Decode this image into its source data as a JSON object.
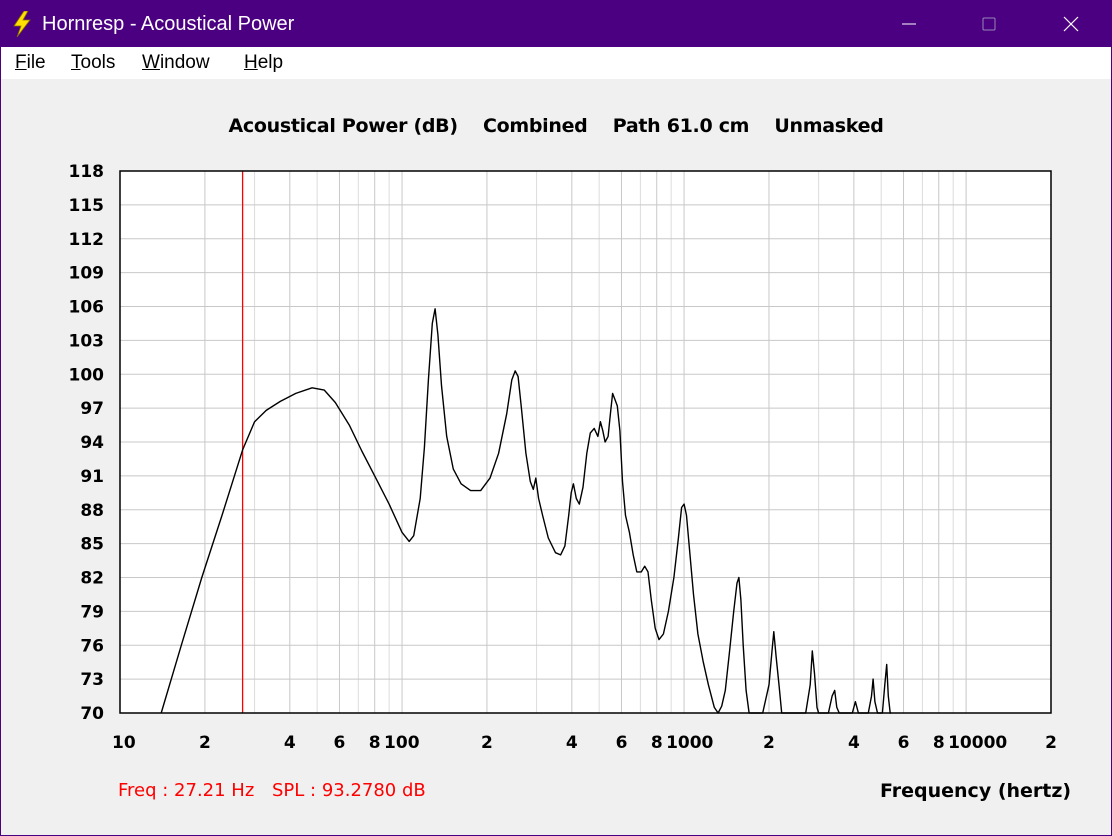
{
  "window": {
    "title": "Hornresp - Acoustical Power",
    "app_icon": "lightning-bolt-icon",
    "title_color": "#4b0082"
  },
  "menu": [
    {
      "label": "File",
      "accel": "F",
      "rest": "ile"
    },
    {
      "label": "Tools",
      "accel": "T",
      "rest": "ools"
    },
    {
      "label": "Window",
      "accel": "W",
      "rest": "indow"
    },
    {
      "label": "Help",
      "accel": "H",
      "rest": "elp"
    }
  ],
  "chart_header": "Acoustical Power (dB)    Combined    Path 61.0 cm    Unmasked",
  "status": {
    "freq": "Freq : 27.21 Hz",
    "spl": "SPL : 93.2780 dB"
  },
  "chart_data": {
    "type": "line",
    "title": "Acoustical Power (dB)    Combined    Path 61.0 cm    Unmasked",
    "xlabel": "Frequency (hertz)",
    "ylabel": "",
    "x_scale": "log",
    "xlim": [
      10,
      20000
    ],
    "ylim": [
      70,
      118
    ],
    "grid": true,
    "y_ticks": [
      "118",
      "115",
      "112",
      "109",
      "106",
      "103",
      "100",
      "97",
      "94",
      "91",
      "88",
      "85",
      "82",
      "79",
      "76",
      "73",
      "70"
    ],
    "x_tick_labels": [
      {
        "x": 10,
        "label": "10"
      },
      {
        "x": 20,
        "label": "2"
      },
      {
        "x": 40,
        "label": "4"
      },
      {
        "x": 60,
        "label": "6"
      },
      {
        "x": 80,
        "label": "8"
      },
      {
        "x": 100,
        "label": "100"
      },
      {
        "x": 200,
        "label": "2"
      },
      {
        "x": 400,
        "label": "4"
      },
      {
        "x": 600,
        "label": "6"
      },
      {
        "x": 800,
        "label": "8"
      },
      {
        "x": 1000,
        "label": "1000"
      },
      {
        "x": 2000,
        "label": "2"
      },
      {
        "x": 4000,
        "label": "4"
      },
      {
        "x": 6000,
        "label": "6"
      },
      {
        "x": 8000,
        "label": "8"
      },
      {
        "x": 10000,
        "label": "10000"
      },
      {
        "x": 20000,
        "label": "2"
      }
    ],
    "cursor": {
      "x": 27.21,
      "color": "#ff0000"
    },
    "series": [
      {
        "color": "#000000",
        "points": [
          [
            14.0,
            70.0
          ],
          [
            16.5,
            76.0
          ],
          [
            19.5,
            82.0
          ],
          [
            23.0,
            87.5
          ],
          [
            27.2,
            93.3
          ],
          [
            30,
            95.8
          ],
          [
            33,
            96.8
          ],
          [
            37,
            97.6
          ],
          [
            42,
            98.3
          ],
          [
            48,
            98.8
          ],
          [
            53,
            98.6
          ],
          [
            58,
            97.5
          ],
          [
            65,
            95.5
          ],
          [
            72,
            93.2
          ],
          [
            80,
            91.0
          ],
          [
            90,
            88.5
          ],
          [
            100,
            86.0
          ],
          [
            106,
            85.2
          ],
          [
            110,
            85.7
          ],
          [
            116,
            89.0
          ],
          [
            120,
            93.5
          ],
          [
            124,
            99.5
          ],
          [
            128,
            104.5
          ],
          [
            131,
            105.8
          ],
          [
            134,
            103.5
          ],
          [
            138,
            99.0
          ],
          [
            144,
            94.5
          ],
          [
            152,
            91.6
          ],
          [
            162,
            90.3
          ],
          [
            175,
            89.7
          ],
          [
            190,
            89.7
          ],
          [
            205,
            90.8
          ],
          [
            220,
            93.0
          ],
          [
            235,
            96.5
          ],
          [
            245,
            99.5
          ],
          [
            252,
            100.3
          ],
          [
            258,
            99.8
          ],
          [
            265,
            97.0
          ],
          [
            275,
            93.0
          ],
          [
            285,
            90.5
          ],
          [
            292,
            89.8
          ],
          [
            298,
            90.8
          ],
          [
            305,
            89.0
          ],
          [
            315,
            87.5
          ],
          [
            330,
            85.5
          ],
          [
            350,
            84.2
          ],
          [
            365,
            84.0
          ],
          [
            378,
            84.8
          ],
          [
            390,
            87.5
          ],
          [
            398,
            89.5
          ],
          [
            405,
            90.3
          ],
          [
            415,
            89.0
          ],
          [
            425,
            88.5
          ],
          [
            438,
            90.0
          ],
          [
            452,
            93.0
          ],
          [
            465,
            94.8
          ],
          [
            480,
            95.2
          ],
          [
            495,
            94.5
          ],
          [
            505,
            95.8
          ],
          [
            515,
            95.0
          ],
          [
            525,
            94.0
          ],
          [
            538,
            94.5
          ],
          [
            548,
            96.5
          ],
          [
            558,
            98.3
          ],
          [
            568,
            97.8
          ],
          [
            580,
            97.2
          ],
          [
            592,
            95.0
          ],
          [
            605,
            90.5
          ],
          [
            620,
            87.5
          ],
          [
            640,
            86.0
          ],
          [
            660,
            84.0
          ],
          [
            680,
            82.5
          ],
          [
            705,
            82.5
          ],
          [
            725,
            83.0
          ],
          [
            745,
            82.5
          ],
          [
            765,
            80.0
          ],
          [
            790,
            77.5
          ],
          [
            815,
            76.5
          ],
          [
            845,
            77.0
          ],
          [
            880,
            79.0
          ],
          [
            920,
            82.0
          ],
          [
            955,
            85.5
          ],
          [
            980,
            88.2
          ],
          [
            1000,
            88.5
          ],
          [
            1020,
            87.5
          ],
          [
            1045,
            84.5
          ],
          [
            1080,
            80.5
          ],
          [
            1120,
            77.0
          ],
          [
            1170,
            74.5
          ],
          [
            1220,
            72.5
          ],
          [
            1280,
            70.5
          ],
          [
            1320,
            70.0
          ],
          [
            1360,
            70.6
          ],
          [
            1400,
            72.0
          ],
          [
            1450,
            75.5
          ],
          [
            1500,
            79.0
          ],
          [
            1540,
            81.5
          ],
          [
            1565,
            82.0
          ],
          [
            1590,
            80.0
          ],
          [
            1620,
            76.0
          ],
          [
            1660,
            72.0
          ],
          [
            1700,
            70.0
          ],
          [
            1750,
            70.0
          ],
          [
            1900,
            70.0
          ],
          [
            2000,
            72.5
          ],
          [
            2050,
            75.5
          ],
          [
            2080,
            77.2
          ],
          [
            2120,
            75.0
          ],
          [
            2170,
            72.5
          ],
          [
            2220,
            70.0
          ],
          [
            2300,
            70.0
          ],
          [
            2700,
            70.0
          ],
          [
            2800,
            72.5
          ],
          [
            2850,
            75.5
          ],
          [
            2900,
            73.5
          ],
          [
            2960,
            70.5
          ],
          [
            3000,
            70.0
          ],
          [
            3250,
            70.0
          ],
          [
            3350,
            71.5
          ],
          [
            3420,
            72.0
          ],
          [
            3480,
            70.5
          ],
          [
            3550,
            70.0
          ],
          [
            3950,
            70.0
          ],
          [
            4050,
            71.0
          ],
          [
            4150,
            70.0
          ],
          [
            4500,
            70.0
          ],
          [
            4620,
            71.5
          ],
          [
            4680,
            73.0
          ],
          [
            4750,
            71.0
          ],
          [
            4850,
            70.0
          ],
          [
            5050,
            70.0
          ],
          [
            5150,
            72.5
          ],
          [
            5230,
            74.3
          ],
          [
            5300,
            71.5
          ],
          [
            5380,
            70.0
          ],
          [
            5420,
            70.0
          ]
        ]
      }
    ]
  }
}
